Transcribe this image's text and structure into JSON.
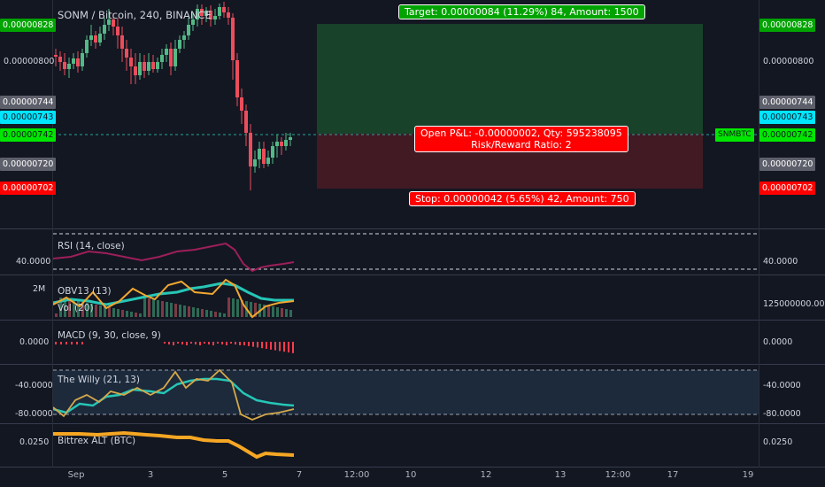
{
  "chart": {
    "symbol_title": "SONM / Bitcoin, 240, BINANCE",
    "symbol_tag": "SNMBTC"
  },
  "price_axis": {
    "left_labels": [
      "0.00000828",
      "0.00000800",
      "0.00000744",
      "0.00000743",
      "0.00000742",
      "0.00000720",
      "0.00000702"
    ],
    "right_labels": [
      "0.00000828",
      "0.00000800",
      "0.00000744",
      "0.00000743",
      "0.00000742",
      "0.00000720",
      "0.00000702"
    ]
  },
  "position": {
    "target_label": "Target: 0.00000084 (11.29%) 84, Amount: 1500",
    "pnl_line1": "Open P&L: -0.00000002, Qty: 595238095",
    "pnl_line2": "Risk/Reward Ratio: 2",
    "stop_label": "Stop: 0.00000042 (5.65%) 42, Amount: 750"
  },
  "indicators": {
    "rsi": {
      "label": "RSI (14, close)",
      "left_value": "40.0000",
      "right_value": "40.0000"
    },
    "obv": {
      "label": "OBV13 (13)",
      "left_value": "2M",
      "right_value": "125000000.0000"
    },
    "vol": {
      "label": "Vol (20)"
    },
    "macd": {
      "label": "MACD (9, 30, close, 9)",
      "left_value": "0.0000",
      "right_value": "0.0000"
    },
    "willy": {
      "label": "The Willy (21, 13)",
      "left_values": [
        "-40.0000",
        "-80.0000"
      ],
      "right_values": [
        "-40.0000",
        "-80.0000"
      ]
    },
    "bittrex": {
      "label": "Bittrex ALT (BTC)",
      "left_value": "0.0250",
      "right_value": "0.0250"
    }
  },
  "time_axis": {
    "labels": [
      "Sep",
      "3",
      "5",
      "7",
      "12:00",
      "10",
      "12",
      "13",
      "12:00",
      "17",
      "19"
    ]
  },
  "colors": {
    "background": "#131722",
    "up": "#26a69a",
    "candle_up": "#53b987",
    "candle_down": "#eb4d5c",
    "target_zone": "#1b4d2a",
    "stop_zone": "#4d1b22",
    "target_badge": "#00a300",
    "stop_badge": "#ff0000",
    "current_price": "#00e600",
    "cyan_label": "#00e5ff"
  }
}
